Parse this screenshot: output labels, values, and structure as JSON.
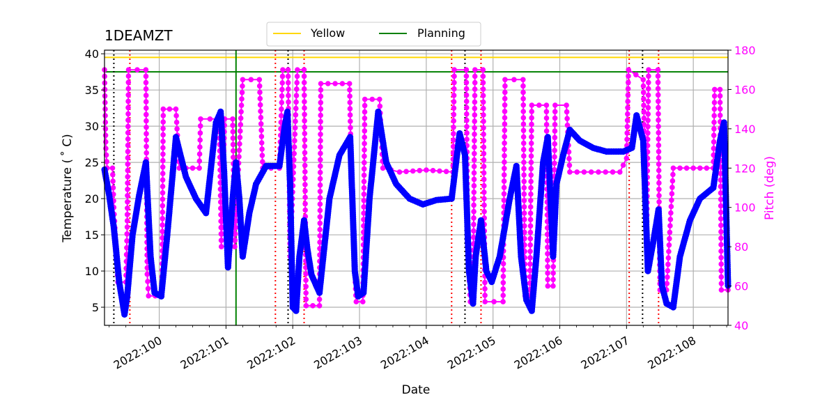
{
  "chart_data": {
    "type": "line",
    "title": "1DEAMZT",
    "xlabel": "Date",
    "ylabel": "Temperature ($^\\circ$C)",
    "ylabel_display": "Temperature ( ˚ C)",
    "y2label": "Pitch (deg)",
    "xlim": [
      99.18,
      108.52
    ],
    "ylim": [
      2.5,
      40.5
    ],
    "y2lim": [
      40,
      180
    ],
    "x_ticks": [
      100,
      101,
      102,
      103,
      104,
      105,
      106,
      107,
      108
    ],
    "x_tick_labels": [
      "2022:100",
      "2022:101",
      "2022:102",
      "2022:103",
      "2022:104",
      "2022:105",
      "2022:106",
      "2022:107",
      "2022:108"
    ],
    "y_ticks": [
      5,
      10,
      15,
      20,
      25,
      30,
      35,
      40
    ],
    "y2_ticks": [
      40,
      60,
      80,
      100,
      120,
      140,
      160,
      180
    ],
    "grid": true,
    "legend": {
      "position": "top-center",
      "entries": [
        "Yellow",
        "Planning"
      ]
    },
    "horizontal_lines": [
      {
        "name": "Yellow",
        "y": 39.5,
        "color": "#FFD700"
      },
      {
        "name": "Planning",
        "y": 37.5,
        "color": "#008000"
      }
    ],
    "vertical_lines": [
      {
        "x": 101.15,
        "color": "#008000",
        "style": "solid"
      },
      {
        "x": 99.32,
        "color": "#000000",
        "style": "dotted"
      },
      {
        "x": 101.93,
        "color": "#000000",
        "style": "dotted"
      },
      {
        "x": 104.58,
        "color": "#000000",
        "style": "dotted"
      },
      {
        "x": 107.24,
        "color": "#000000",
        "style": "dotted"
      },
      {
        "x": 99.56,
        "color": "#FF0000",
        "style": "dotted"
      },
      {
        "x": 101.74,
        "color": "#FF0000",
        "style": "dotted"
      },
      {
        "x": 102.17,
        "color": "#FF0000",
        "style": "dotted"
      },
      {
        "x": 104.38,
        "color": "#FF0000",
        "style": "dotted"
      },
      {
        "x": 104.82,
        "color": "#FF0000",
        "style": "dotted"
      },
      {
        "x": 107.04,
        "color": "#FF0000",
        "style": "dotted"
      },
      {
        "x": 107.48,
        "color": "#FF0000",
        "style": "dotted"
      }
    ],
    "series": [
      {
        "name": "Temperature",
        "axis": "left",
        "color": "#0000FF",
        "points": [
          [
            99.18,
            24.0
          ],
          [
            99.25,
            20.5
          ],
          [
            99.32,
            16.0
          ],
          [
            99.4,
            8.5
          ],
          [
            99.48,
            4.0
          ],
          [
            99.52,
            6.5
          ],
          [
            99.6,
            15.0
          ],
          [
            99.7,
            20.5
          ],
          [
            99.8,
            25.0
          ],
          [
            99.87,
            12.0
          ],
          [
            99.93,
            7.0
          ],
          [
            100.03,
            6.5
          ],
          [
            100.12,
            15.0
          ],
          [
            100.25,
            28.5
          ],
          [
            100.4,
            23.0
          ],
          [
            100.55,
            20.0
          ],
          [
            100.7,
            18.0
          ],
          [
            100.85,
            30.5
          ],
          [
            100.92,
            32.0
          ],
          [
            100.97,
            24.0
          ],
          [
            101.03,
            10.5
          ],
          [
            101.1,
            20.0
          ],
          [
            101.15,
            25.0
          ],
          [
            101.2,
            20.0
          ],
          [
            101.25,
            12.0
          ],
          [
            101.35,
            18.0
          ],
          [
            101.45,
            22.0
          ],
          [
            101.6,
            24.5
          ],
          [
            101.8,
            24.5
          ],
          [
            101.88,
            30.0
          ],
          [
            101.92,
            32.0
          ],
          [
            101.96,
            22.0
          ],
          [
            102.0,
            5.0
          ],
          [
            102.05,
            4.5
          ],
          [
            102.1,
            12.0
          ],
          [
            102.17,
            17.0
          ],
          [
            102.22,
            13.0
          ],
          [
            102.28,
            9.5
          ],
          [
            102.4,
            7.0
          ],
          [
            102.55,
            20.0
          ],
          [
            102.7,
            26.0
          ],
          [
            102.86,
            28.5
          ],
          [
            102.93,
            10.0
          ],
          [
            102.98,
            6.5
          ],
          [
            103.06,
            7.0
          ],
          [
            103.15,
            20.0
          ],
          [
            103.28,
            32.0
          ],
          [
            103.4,
            25.0
          ],
          [
            103.55,
            22.0
          ],
          [
            103.75,
            20.0
          ],
          [
            103.95,
            19.2
          ],
          [
            104.15,
            19.8
          ],
          [
            104.38,
            20.0
          ],
          [
            104.5,
            29.0
          ],
          [
            104.58,
            26.0
          ],
          [
            104.64,
            10.0
          ],
          [
            104.7,
            5.5
          ],
          [
            104.74,
            12.0
          ],
          [
            104.82,
            17.0
          ],
          [
            104.9,
            10.0
          ],
          [
            104.98,
            8.5
          ],
          [
            105.1,
            12.0
          ],
          [
            105.25,
            20.0
          ],
          [
            105.35,
            24.5
          ],
          [
            105.42,
            12.0
          ],
          [
            105.5,
            6.0
          ],
          [
            105.58,
            4.5
          ],
          [
            105.65,
            12.0
          ],
          [
            105.75,
            25.0
          ],
          [
            105.82,
            28.5
          ],
          [
            105.9,
            12.0
          ],
          [
            105.95,
            22.0
          ],
          [
            106.05,
            26.0
          ],
          [
            106.15,
            29.5
          ],
          [
            106.3,
            28.0
          ],
          [
            106.5,
            27.0
          ],
          [
            106.7,
            26.5
          ],
          [
            106.95,
            26.5
          ],
          [
            107.08,
            27.0
          ],
          [
            107.15,
            31.5
          ],
          [
            107.25,
            28.0
          ],
          [
            107.32,
            10.0
          ],
          [
            107.4,
            14.0
          ],
          [
            107.48,
            18.5
          ],
          [
            107.53,
            8.0
          ],
          [
            107.6,
            5.5
          ],
          [
            107.7,
            5.0
          ],
          [
            107.8,
            12.0
          ],
          [
            107.95,
            17.0
          ],
          [
            108.1,
            20.0
          ],
          [
            108.3,
            21.5
          ],
          [
            108.4,
            28.0
          ],
          [
            108.46,
            30.5
          ],
          [
            108.52,
            8.0
          ]
        ]
      },
      {
        "name": "Pitch",
        "axis": "right",
        "color": "#FF00FF",
        "points": [
          [
            99.18,
            170
          ],
          [
            99.2,
            130
          ],
          [
            99.22,
            120
          ],
          [
            99.3,
            120
          ],
          [
            99.32,
            100
          ],
          [
            99.38,
            62
          ],
          [
            99.5,
            62
          ],
          [
            99.52,
            90
          ],
          [
            99.54,
            170
          ],
          [
            99.8,
            170
          ],
          [
            99.82,
            66
          ],
          [
            99.84,
            55
          ],
          [
            100.04,
            55
          ],
          [
            100.06,
            150
          ],
          [
            100.25,
            150
          ],
          [
            100.3,
            120
          ],
          [
            100.6,
            120
          ],
          [
            100.62,
            145
          ],
          [
            100.9,
            145
          ],
          [
            100.93,
            80
          ],
          [
            100.98,
            145
          ],
          [
            101.1,
            145
          ],
          [
            101.13,
            80
          ],
          [
            101.25,
            165
          ],
          [
            101.5,
            165
          ],
          [
            101.55,
            120
          ],
          [
            101.8,
            120
          ],
          [
            101.85,
            170
          ],
          [
            101.93,
            170
          ],
          [
            101.96,
            75
          ],
          [
            102.07,
            170
          ],
          [
            102.17,
            170
          ],
          [
            102.2,
            50
          ],
          [
            102.4,
            50
          ],
          [
            102.42,
            163
          ],
          [
            102.85,
            163
          ],
          [
            102.88,
            115
          ],
          [
            102.92,
            75
          ],
          [
            102.95,
            52
          ],
          [
            103.05,
            52
          ],
          [
            103.08,
            155
          ],
          [
            103.3,
            155
          ],
          [
            103.35,
            120
          ],
          [
            103.6,
            118
          ],
          [
            104.0,
            119
          ],
          [
            104.4,
            118
          ],
          [
            104.42,
            170
          ],
          [
            104.6,
            170
          ],
          [
            104.62,
            80
          ],
          [
            104.66,
            52
          ],
          [
            104.7,
            52
          ],
          [
            104.73,
            170
          ],
          [
            104.85,
            170
          ],
          [
            104.88,
            52
          ],
          [
            105.15,
            52
          ],
          [
            105.18,
            165
          ],
          [
            105.45,
            165
          ],
          [
            105.48,
            55
          ],
          [
            105.55,
            55
          ],
          [
            105.58,
            152
          ],
          [
            105.8,
            152
          ],
          [
            105.82,
            60
          ],
          [
            105.9,
            60
          ],
          [
            105.93,
            152
          ],
          [
            106.1,
            152
          ],
          [
            106.15,
            118
          ],
          [
            106.9,
            118
          ],
          [
            107.0,
            125
          ],
          [
            107.03,
            170
          ],
          [
            107.25,
            165
          ],
          [
            107.3,
            80
          ],
          [
            107.33,
            170
          ],
          [
            107.47,
            170
          ],
          [
            107.5,
            58
          ],
          [
            107.6,
            58
          ],
          [
            107.7,
            120
          ],
          [
            108.3,
            120
          ],
          [
            108.32,
            160
          ],
          [
            108.4,
            160
          ],
          [
            108.42,
            58
          ],
          [
            108.52,
            58
          ]
        ]
      }
    ]
  }
}
